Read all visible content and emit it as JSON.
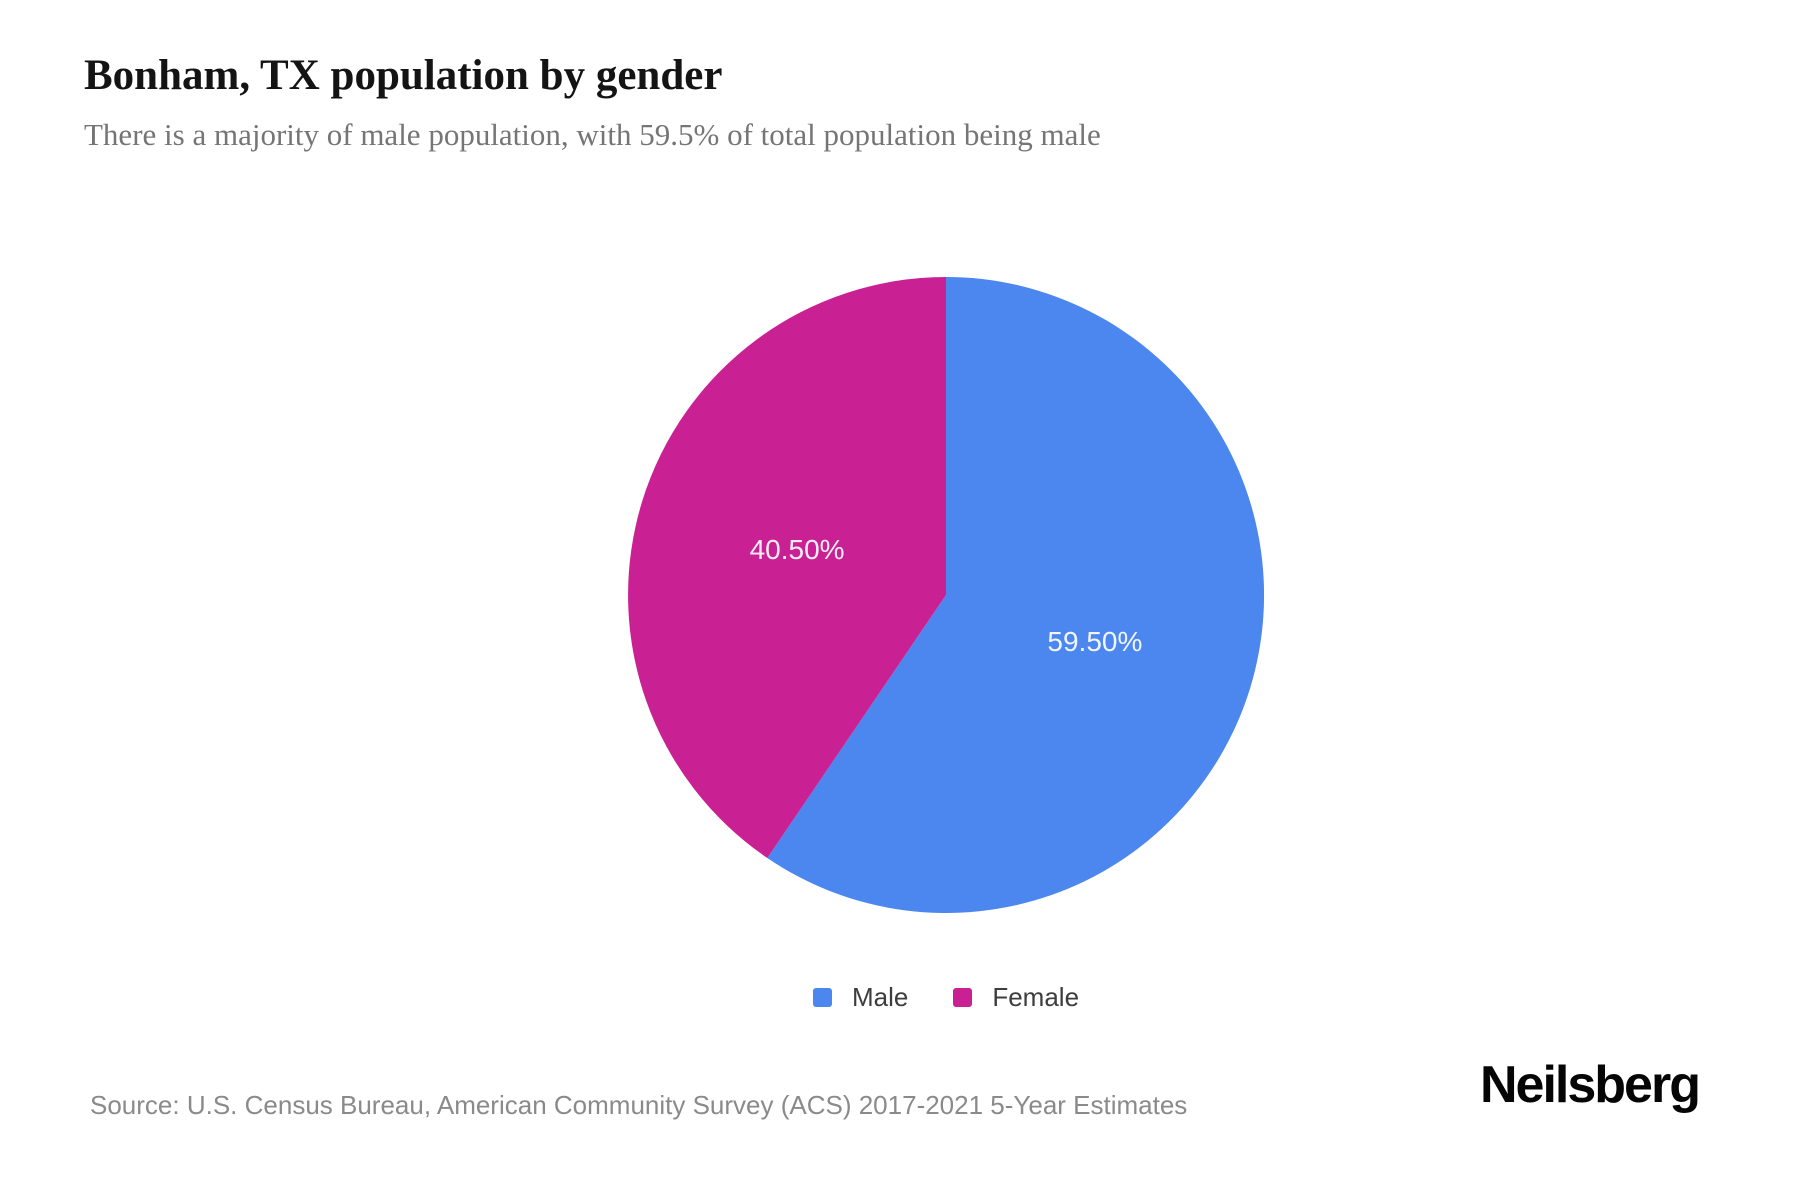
{
  "header": {
    "title": "Bonham, TX population by gender",
    "subtitle": "There is a majority of male population, with 59.5% of total population being male"
  },
  "chart_data": {
    "type": "pie",
    "title": "Bonham, TX population by gender",
    "start_angle_deg": 0,
    "direction": "clockwise",
    "label_position": "inside",
    "label_color": "#ffffff",
    "legend_position": "bottom",
    "series": [
      {
        "name": "Male",
        "value": 59.5,
        "label": "59.50%",
        "color": "#4B87EE"
      },
      {
        "name": "Female",
        "value": 40.5,
        "label": "40.50%",
        "color": "#C92193"
      }
    ]
  },
  "legend": {
    "items": [
      {
        "label": "Male",
        "color": "#4B87EE"
      },
      {
        "label": "Female",
        "color": "#C92193"
      }
    ]
  },
  "footer": {
    "source": "Source: U.S. Census Bureau, American Community Survey (ACS) 2017-2021 5-Year Estimates",
    "brand": "Neilsberg"
  }
}
